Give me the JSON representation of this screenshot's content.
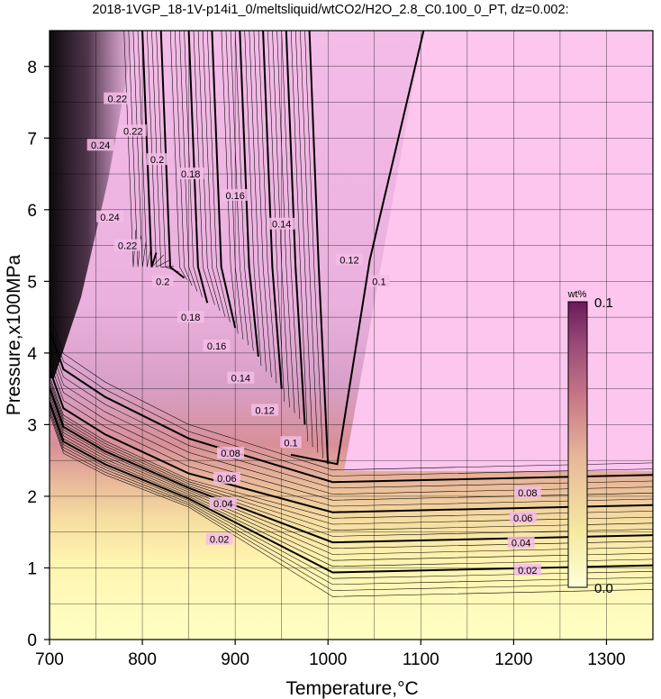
{
  "chart_data": {
    "type": "heatmap",
    "title": "2018-1VGP_18-1V-p14i1_0/meltsliquid/wtCO2/H2O_2.8_C0.100_0_PT, dz=0.002:",
    "xlabel": "Temperature,°C",
    "ylabel": "Pressure,x100MPa",
    "xlim": [
      700,
      1350
    ],
    "ylim": [
      0,
      8.5
    ],
    "x_ticks": [
      700,
      800,
      900,
      1000,
      1100,
      1200,
      1300
    ],
    "x_tick_labels": [
      "700",
      "800",
      "900",
      "1000",
      "1100",
      "1200",
      "1300"
    ],
    "y_ticks": [
      0,
      1,
      2,
      3,
      4,
      5,
      6,
      7,
      8
    ],
    "y_tick_labels": [
      "0",
      "1",
      "2",
      "3",
      "4",
      "5",
      "6",
      "7",
      "8"
    ],
    "grid": true,
    "contour_interval": 0.002,
    "colorbar": {
      "title": "wt%",
      "min_label": "0.0",
      "max_label": "0.1",
      "min": 0.0,
      "max": 0.1,
      "colors": [
        "#ffffd8",
        "#f5e9a0",
        "#e8b89a",
        "#cc7b88",
        "#9a4a78",
        "#6a1a5a"
      ],
      "saturated_color": "#fcc6ee"
    },
    "contour_labels": [
      {
        "text": "0.22",
        "x": 773,
        "y": 7.55
      },
      {
        "text": "0.22",
        "x": 790,
        "y": 7.1
      },
      {
        "text": "0.2",
        "x": 816,
        "y": 6.7
      },
      {
        "text": "0.18",
        "x": 852,
        "y": 6.5
      },
      {
        "text": "0.16",
        "x": 900,
        "y": 6.2
      },
      {
        "text": "0.14",
        "x": 950,
        "y": 5.8
      },
      {
        "text": "0.12",
        "x": 1023,
        "y": 5.3
      },
      {
        "text": "0.1",
        "x": 1055,
        "y": 5.0
      },
      {
        "text": "0.24",
        "x": 755,
        "y": 6.9
      },
      {
        "text": "0.24",
        "x": 765,
        "y": 5.9
      },
      {
        "text": "0.22",
        "x": 784,
        "y": 5.5
      },
      {
        "text": "0.2",
        "x": 822,
        "y": 5.0
      },
      {
        "text": "0.18",
        "x": 852,
        "y": 4.5
      },
      {
        "text": "0.16",
        "x": 880,
        "y": 4.1
      },
      {
        "text": "0.14",
        "x": 906,
        "y": 3.65
      },
      {
        "text": "0.12",
        "x": 932,
        "y": 3.2
      },
      {
        "text": "0.1",
        "x": 960,
        "y": 2.75
      },
      {
        "text": "0.08",
        "x": 895,
        "y": 2.6
      },
      {
        "text": "0.06",
        "x": 891,
        "y": 2.25
      },
      {
        "text": "0.04",
        "x": 887,
        "y": 1.9
      },
      {
        "text": "0.02",
        "x": 883,
        "y": 1.4
      },
      {
        "text": "0.08",
        "x": 1215,
        "y": 2.05
      },
      {
        "text": "0.06",
        "x": 1210,
        "y": 1.7
      },
      {
        "text": "0.04",
        "x": 1208,
        "y": 1.35
      },
      {
        "text": "0.02",
        "x": 1215,
        "y": 0.97
      }
    ],
    "contour_levels": [
      0.02,
      0.04,
      0.06,
      0.08,
      0.1,
      0.12,
      0.14,
      0.16,
      0.18,
      0.2,
      0.22,
      0.24
    ]
  }
}
